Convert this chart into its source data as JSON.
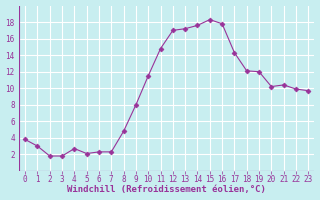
{
  "x": [
    0,
    1,
    2,
    3,
    4,
    5,
    6,
    7,
    8,
    9,
    10,
    11,
    12,
    13,
    14,
    15,
    16,
    17,
    18,
    19,
    20,
    21,
    22,
    23
  ],
  "y": [
    3.8,
    3.0,
    1.8,
    1.8,
    2.7,
    2.1,
    2.3,
    2.3,
    4.8,
    8.0,
    11.5,
    14.8,
    17.0,
    17.2,
    17.6,
    18.3,
    17.8,
    14.3,
    12.1,
    12.0,
    10.2,
    10.4,
    9.9,
    9.7
  ],
  "line_color": "#993399",
  "marker": "D",
  "marker_size": 2.5,
  "bg_color": "#c8eef0",
  "grid_color": "#ffffff",
  "xlabel": "Windchill (Refroidissement éolien,°C)",
  "xlabel_color": "#993399",
  "tick_color": "#993399",
  "ylim": [
    0,
    20
  ],
  "xlim": [
    -0.5,
    23.5
  ],
  "yticks": [
    2,
    4,
    6,
    8,
    10,
    12,
    14,
    16,
    18
  ],
  "xticks": [
    0,
    1,
    2,
    3,
    4,
    5,
    6,
    7,
    8,
    9,
    10,
    11,
    12,
    13,
    14,
    15,
    16,
    17,
    18,
    19,
    20,
    21,
    22,
    23
  ],
  "font_size": 5.5,
  "label_font_size": 6.5
}
